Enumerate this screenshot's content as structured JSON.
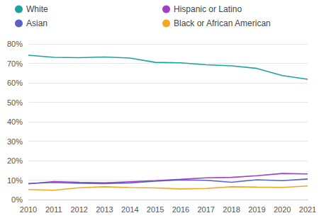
{
  "chart_data": {
    "type": "line",
    "categories": [
      "2010",
      "2011",
      "2012",
      "2013",
      "2014",
      "2015",
      "2016",
      "2017",
      "2018",
      "2019",
      "2020",
      "2021"
    ],
    "series": [
      {
        "name": "White",
        "color": "#1ba39c",
        "values": [
          74.2,
          73.1,
          72.9,
          73.3,
          72.7,
          70.5,
          70.3,
          69.3,
          68.7,
          67.4,
          63.7,
          61.8
        ]
      },
      {
        "name": "Hispanic or Latino",
        "color": "#a43fc4",
        "values": [
          8.1,
          9.3,
          8.9,
          8.6,
          9.2,
          9.7,
          10.4,
          11.2,
          11.4,
          12.3,
          13.4,
          13.2
        ]
      },
      {
        "name": "Asian",
        "color": "#5b62c2",
        "values": [
          8.3,
          8.8,
          8.4,
          8.2,
          8.6,
          9.5,
          10.1,
          9.9,
          8.9,
          10.2,
          9.7,
          10.6
        ]
      },
      {
        "name": "Black or African American",
        "color": "#f5a623",
        "values": [
          5.2,
          4.8,
          6.1,
          6.6,
          6.2,
          6.0,
          5.5,
          5.7,
          6.6,
          6.4,
          6.3,
          7.0
        ]
      }
    ],
    "ylim": [
      0,
      80
    ],
    "yticks": [
      {
        "value": 0,
        "label": "0%"
      },
      {
        "value": 10,
        "label": "10%"
      },
      {
        "value": 20,
        "label": "20%"
      },
      {
        "value": 30,
        "label": "30%"
      },
      {
        "value": 40,
        "label": "40%"
      },
      {
        "value": 50,
        "label": "50%"
      },
      {
        "value": 60,
        "label": "60%"
      },
      {
        "value": 70,
        "label": "70%"
      },
      {
        "value": 80,
        "label": "80%"
      }
    ],
    "grid": true,
    "legend": "top"
  }
}
